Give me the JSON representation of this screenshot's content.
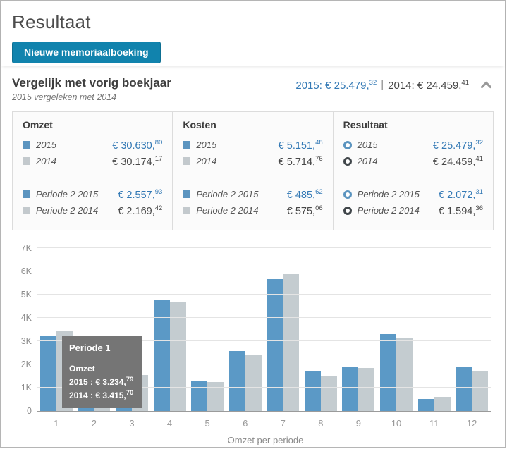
{
  "page": {
    "title": "Resultaat"
  },
  "toolbar": {
    "new_entry_button": "Nieuwe memoriaalboeking"
  },
  "panel": {
    "title": "Vergelijk met vorig boekjaar",
    "subtitle": "2015 vergeleken met 2014",
    "totals": {
      "y2015_label": "2015:",
      "y2015_amount": "€ 25.479,",
      "y2015_cents": "32",
      "separator": "|",
      "y2014_label": "2014:",
      "y2014_amount": "€ 24.459,",
      "y2014_cents": "41"
    }
  },
  "summary": {
    "columns": [
      {
        "title": "Omzet",
        "rows": [
          {
            "label": "2015",
            "amount": "€ 30.630,",
            "cents": "80"
          },
          {
            "label": "2014",
            "amount": "€ 30.174,",
            "cents": "17"
          },
          {
            "label": "Periode 2 2015",
            "amount": "€ 2.557,",
            "cents": "93"
          },
          {
            "label": "Periode 2 2014",
            "amount": "€ 2.169,",
            "cents": "42"
          }
        ]
      },
      {
        "title": "Kosten",
        "rows": [
          {
            "label": "2015",
            "amount": "€ 5.151,",
            "cents": "48"
          },
          {
            "label": "2014",
            "amount": "€ 5.714,",
            "cents": "76"
          },
          {
            "label": "Periode 2 2015",
            "amount": "€ 485,",
            "cents": "62"
          },
          {
            "label": "Periode 2 2014",
            "amount": "€ 575,",
            "cents": "06"
          }
        ]
      },
      {
        "title": "Resultaat",
        "rows": [
          {
            "label": "2015",
            "amount": "€ 25.479,",
            "cents": "32"
          },
          {
            "label": "2014",
            "amount": "€ 24.459,",
            "cents": "41"
          },
          {
            "label": "Periode 2 2015",
            "amount": "€ 2.072,",
            "cents": "31"
          },
          {
            "label": "Periode 2 2014",
            "amount": "€ 1.594,",
            "cents": "36"
          }
        ]
      }
    ]
  },
  "tooltip": {
    "title": "Periode 1",
    "section": "Omzet",
    "lines": [
      {
        "label": "2015 :",
        "amount": "€ 3.234,",
        "cents": "79"
      },
      {
        "label": "2014 :",
        "amount": "€ 3.415,",
        "cents": "70"
      }
    ]
  },
  "chart_data": {
    "type": "bar",
    "title": "",
    "xlabel": "Omzet per periode",
    "ylabel": "",
    "categories": [
      "1",
      "2",
      "3",
      "4",
      "5",
      "6",
      "7",
      "8",
      "9",
      "10",
      "11",
      "12"
    ],
    "series": [
      {
        "name": "2015",
        "color": "#5b99c6",
        "values": [
          3234.79,
          2557.93,
          1400,
          4760,
          1270,
          2580,
          5680,
          1700,
          1870,
          3300,
          520,
          1900
        ]
      },
      {
        "name": "2014",
        "color": "#c4ccd0",
        "values": [
          3415.7,
          2169.42,
          1550,
          4680,
          1240,
          2420,
          5880,
          1480,
          1850,
          3150,
          620,
          1720
        ]
      }
    ],
    "ylim": [
      0,
      7000
    ],
    "ytick_labels": [
      "0",
      "1K",
      "2K",
      "3K",
      "4K",
      "5K",
      "6K",
      "7K"
    ],
    "grid": true,
    "legend_position": "none"
  },
  "colors": {
    "accent_blue": "#3379b5",
    "bar_2015": "#5b99c6",
    "bar_2014": "#c4ccd0",
    "button_bg": "#1183ad",
    "tooltip_bg": "#757575"
  }
}
